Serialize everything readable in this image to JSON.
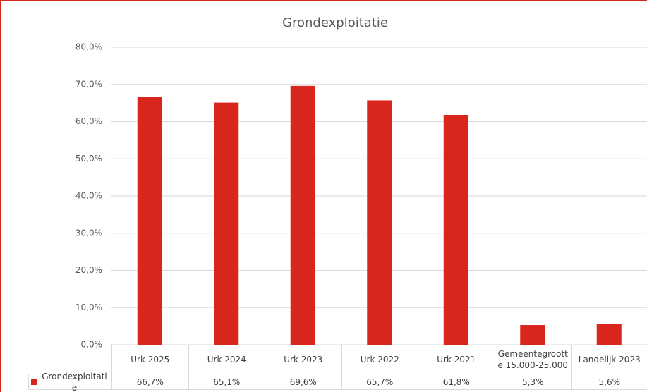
{
  "chart_data": {
    "type": "bar",
    "title": "Grondexploitatie",
    "categories": [
      "Urk 2025",
      "Urk 2024",
      "Urk 2023",
      "Urk 2022",
      "Urk 2021",
      "Gemeentegrootte 15.000-25.000",
      "Landelijk 2023"
    ],
    "series": [
      {
        "name": "Grondexploitatie",
        "color": "#d9261c",
        "values": [
          66.7,
          65.1,
          69.6,
          65.7,
          61.8,
          5.3,
          5.6
        ],
        "value_labels": [
          "66,7%",
          "65,1%",
          "69,6%",
          "65,7%",
          "61,8%",
          "5,3%",
          "5,6%"
        ]
      }
    ],
    "ylim": [
      0,
      80
    ],
    "yticks": [
      {
        "value": 0,
        "label": "0,0%"
      },
      {
        "value": 10,
        "label": "10,0%"
      },
      {
        "value": 20,
        "label": "20,0%"
      },
      {
        "value": 30,
        "label": "30,0%"
      },
      {
        "value": 40,
        "label": "40,0%"
      },
      {
        "value": 50,
        "label": "50,0%"
      },
      {
        "value": 60,
        "label": "60,0%"
      },
      {
        "value": 70,
        "label": "70,0%"
      },
      {
        "value": 80,
        "label": "80,0%"
      }
    ],
    "grid": true,
    "legend": "table"
  }
}
